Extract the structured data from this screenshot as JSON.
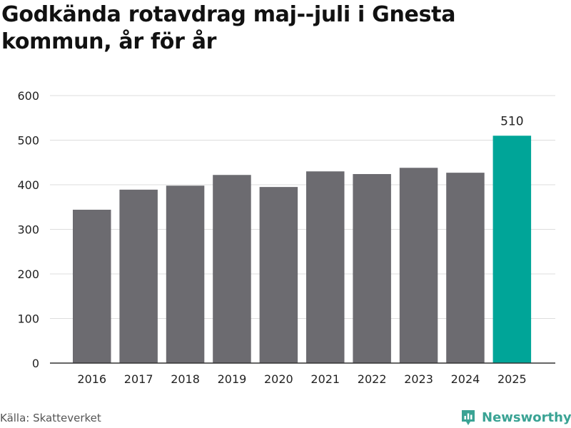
{
  "title": "Godkända rotavdrag maj--juli i Gnesta kommun, år för år",
  "source": "Källa: Skatteverket",
  "brand": "Newsworthy",
  "colors": {
    "bar": "#6c6b70",
    "highlight": "#00a598",
    "grid": "#dddddd",
    "axis": "#333333",
    "text": "#222222",
    "brand": "#3aa394"
  },
  "chart_data": {
    "type": "bar",
    "categories": [
      "2016",
      "2017",
      "2018",
      "2019",
      "2020",
      "2021",
      "2022",
      "2023",
      "2024",
      "2025"
    ],
    "values": [
      344,
      389,
      398,
      422,
      395,
      430,
      424,
      438,
      427,
      510
    ],
    "highlight_index": 9,
    "data_labels": [
      {
        "index": 9,
        "text": "510"
      }
    ],
    "yticks": [
      0,
      100,
      200,
      300,
      400,
      500,
      600
    ],
    "ylim": [
      0,
      600
    ],
    "grid": true,
    "xlabel": "",
    "ylabel": ""
  }
}
